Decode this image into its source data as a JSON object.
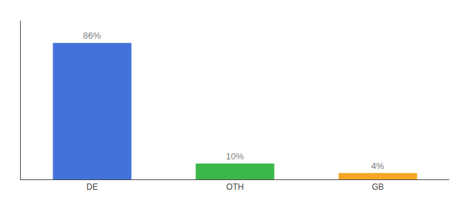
{
  "chart_data": {
    "type": "bar",
    "categories": [
      "DE",
      "OTH",
      "GB"
    ],
    "values": [
      86,
      10,
      4
    ],
    "value_labels": [
      "86%",
      "10%",
      "4%"
    ],
    "colors": [
      "#4472db",
      "#3cb84a",
      "#f5a623"
    ],
    "ylim": [
      0,
      100
    ],
    "grid": false,
    "data_labels": true,
    "tick_labels": "x"
  }
}
